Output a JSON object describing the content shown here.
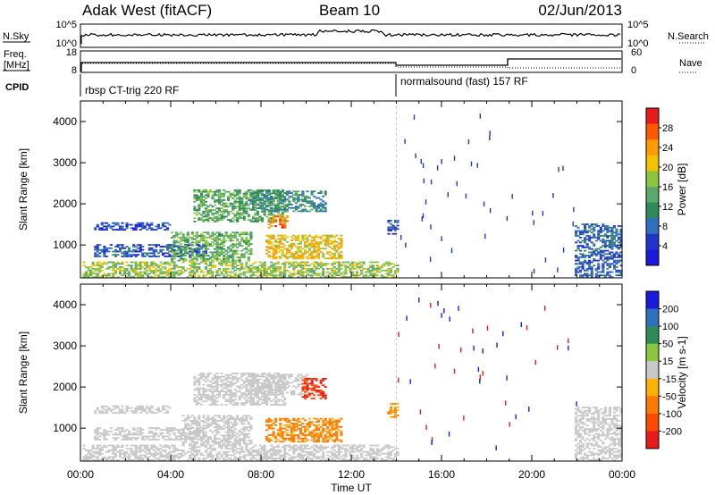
{
  "header": {
    "station": "Adak West (fitACF)",
    "beam": "Beam 10",
    "date": "02/Jun/2013"
  },
  "nsky_panel": {
    "left_label": "N.Sky",
    "right_label": "N.Search",
    "left_ticks": [
      "10^5",
      "10^0"
    ],
    "right_ticks": [
      "10^5",
      "10^0"
    ]
  },
  "freq_panel": {
    "left_label_line1": "Freq.",
    "left_label_line2": "[MHz]",
    "right_label": "Nave",
    "left_ticks": [
      "18",
      "8"
    ],
    "right_ticks": [
      "60",
      "0"
    ]
  },
  "cpid_panel": {
    "label": "CPID",
    "segments": [
      {
        "start_hour": 0,
        "end_hour": 14,
        "text": "rbsp CT-trig 220 RF"
      },
      {
        "start_hour": 14,
        "end_hour": 24,
        "text": "normalsound (fast) 157 RF"
      }
    ]
  },
  "time_axis": {
    "label": "Time UT",
    "tick_labels": [
      "00:00",
      "04:00",
      "08:00",
      "12:00",
      "16:00",
      "20:00",
      "00:00"
    ],
    "tick_hours": [
      0,
      4,
      8,
      12,
      16,
      20,
      24
    ]
  },
  "colors": {
    "power_scale": [
      "#1a1adc",
      "#2233cc",
      "#2e6fbf",
      "#2e8b57",
      "#5aa86a",
      "#8cc63f",
      "#f2c200",
      "#ff9a00",
      "#ff5a00",
      "#e81a1a"
    ],
    "velocity_scale": [
      "#1a1adc",
      "#2e6fbf",
      "#2e8b57",
      "#8cc63f",
      "#c8c8c8",
      "#ffb000",
      "#ff7a00",
      "#ff4a00",
      "#e81a1a"
    ]
  },
  "chart_data": [
    {
      "type": "heatmap",
      "panel": "power",
      "ylabel": "Slant Range [km]",
      "xlim": [
        0,
        24
      ],
      "ylim": [
        200,
        4500
      ],
      "yticks": [
        1000,
        2000,
        3000,
        4000
      ],
      "colorbar": {
        "label": "Power [dB]",
        "ticks": [
          "28",
          "24",
          "20",
          "16",
          "12",
          "8",
          "4"
        ],
        "range": [
          0,
          30
        ]
      },
      "features": [
        {
          "t0": 0.1,
          "t1": 14,
          "r0": 200,
          "r1": 600,
          "level": 16
        },
        {
          "t0": 0.6,
          "t1": 5.5,
          "r0": 700,
          "r1": 1000,
          "level": 6
        },
        {
          "t0": 0.6,
          "t1": 4.0,
          "r0": 1350,
          "r1": 1550,
          "level": 5
        },
        {
          "t0": 4.0,
          "t1": 7.5,
          "r0": 600,
          "r1": 1300,
          "level": 14
        },
        {
          "t0": 5.0,
          "t1": 9.0,
          "r0": 1550,
          "r1": 2350,
          "level": 13
        },
        {
          "t0": 7.5,
          "t1": 10.8,
          "r0": 1800,
          "r1": 2300,
          "level": 10
        },
        {
          "t0": 8.3,
          "t1": 9.1,
          "r0": 1400,
          "r1": 1700,
          "level": 24
        },
        {
          "t0": 8.2,
          "t1": 11.5,
          "r0": 650,
          "r1": 1250,
          "level": 20
        },
        {
          "t0": 13.6,
          "t1": 14.0,
          "r0": 1250,
          "r1": 1600,
          "level": 6
        },
        {
          "t0": 21.9,
          "t1": 24,
          "r0": 200,
          "r1": 1500,
          "level": 7
        }
      ]
    },
    {
      "type": "heatmap",
      "panel": "velocity",
      "ylabel": "Slant Range [km]",
      "xlim": [
        0,
        24
      ],
      "ylim": [
        200,
        4500
      ],
      "yticks": [
        1000,
        2000,
        3000,
        4000
      ],
      "colorbar": {
        "label": "Velocity [m s-1]",
        "ticks": [
          "200",
          "100",
          "50",
          "15",
          "-15",
          "-50",
          "-100",
          "-200"
        ],
        "range": [
          -250,
          250
        ]
      },
      "features": [
        {
          "t0": 0.1,
          "t1": 14,
          "r0": 200,
          "r1": 600,
          "level": 0
        },
        {
          "t0": 0.6,
          "t1": 5.5,
          "r0": 700,
          "r1": 1000,
          "level": 0
        },
        {
          "t0": 0.6,
          "t1": 4.0,
          "r0": 1350,
          "r1": 1550,
          "level": 0
        },
        {
          "t0": 4.5,
          "t1": 7.5,
          "r0": 600,
          "r1": 1300,
          "level": 0
        },
        {
          "t0": 5.0,
          "t1": 9.0,
          "r0": 1550,
          "r1": 2350,
          "level": 0
        },
        {
          "t0": 7.5,
          "t1": 10.0,
          "r0": 1800,
          "r1": 2300,
          "level": 0
        },
        {
          "t0": 9.8,
          "t1": 10.8,
          "r0": 1700,
          "r1": 2200,
          "level": -200
        },
        {
          "t0": 8.2,
          "t1": 11.5,
          "r0": 650,
          "r1": 1250,
          "level": -100
        },
        {
          "t0": 13.6,
          "t1": 14.0,
          "r0": 1250,
          "r1": 1600,
          "level": -80
        },
        {
          "t0": 21.9,
          "t1": 24,
          "r0": 200,
          "r1": 1500,
          "level": 0
        }
      ]
    }
  ]
}
